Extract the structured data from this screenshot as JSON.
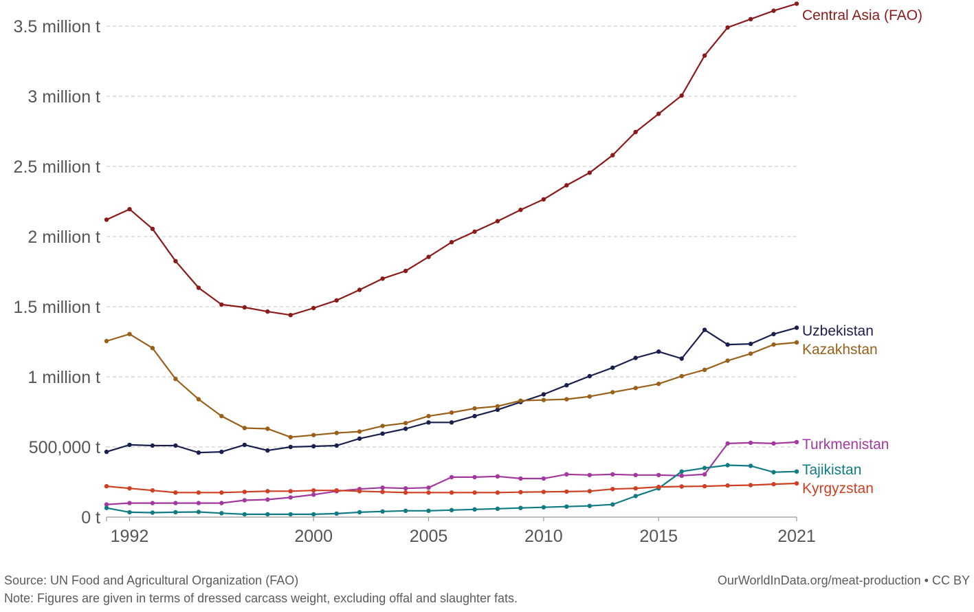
{
  "chart_data": {
    "type": "line",
    "title": "",
    "xlabel": "",
    "ylabel": "",
    "x": [
      1991,
      1992,
      1993,
      1994,
      1995,
      1996,
      1997,
      1998,
      1999,
      2000,
      2001,
      2002,
      2003,
      2004,
      2005,
      2006,
      2007,
      2008,
      2009,
      2010,
      2011,
      2012,
      2013,
      2014,
      2015,
      2016,
      2017,
      2018,
      2019,
      2020,
      2021
    ],
    "xlim": [
      1991,
      2021
    ],
    "ylim": [
      0,
      3600000
    ],
    "y_ticks": [
      {
        "value": 0,
        "label": "0 t"
      },
      {
        "value": 500000,
        "label": "500,000 t"
      },
      {
        "value": 1000000,
        "label": "1 million t"
      },
      {
        "value": 1500000,
        "label": "1.5 million t"
      },
      {
        "value": 2000000,
        "label": "2 million t"
      },
      {
        "value": 2500000,
        "label": "2.5 million t"
      },
      {
        "value": 3000000,
        "label": "3 million t"
      },
      {
        "value": 3500000,
        "label": "3.5 million t"
      }
    ],
    "x_ticks": [
      {
        "value": 1992,
        "label": "1992"
      },
      {
        "value": 2000,
        "label": "2000"
      },
      {
        "value": 2005,
        "label": "2005"
      },
      {
        "value": 2010,
        "label": "2010"
      },
      {
        "value": 2015,
        "label": "2015"
      },
      {
        "value": 2021,
        "label": "2021"
      }
    ],
    "grid": true,
    "series": [
      {
        "name": "Central Asia (FAO)",
        "color": "#8b1a1a",
        "values": [
          2120000,
          2195000,
          2055000,
          1825000,
          1635000,
          1515000,
          1495000,
          1465000,
          1440000,
          1490000,
          1545000,
          1620000,
          1700000,
          1755000,
          1855000,
          1960000,
          2035000,
          2110000,
          2190000,
          2265000,
          2365000,
          2455000,
          2580000,
          2745000,
          2875000,
          3005000,
          3290000,
          3490000,
          3550000,
          3610000,
          3660000
        ]
      },
      {
        "name": "Uzbekistan",
        "color": "#1a1f4d",
        "values": [
          465000,
          515000,
          510000,
          510000,
          460000,
          465000,
          515000,
          475000,
          500000,
          505000,
          510000,
          560000,
          595000,
          630000,
          675000,
          675000,
          720000,
          765000,
          820000,
          875000,
          940000,
          1005000,
          1065000,
          1135000,
          1180000,
          1130000,
          1335000,
          1230000,
          1235000,
          1305000,
          1350000
        ]
      },
      {
        "name": "Kazakhstan",
        "color": "#98601a",
        "values": [
          1255000,
          1305000,
          1205000,
          985000,
          840000,
          720000,
          635000,
          630000,
          570000,
          585000,
          600000,
          610000,
          650000,
          670000,
          720000,
          745000,
          775000,
          790000,
          830000,
          835000,
          840000,
          860000,
          890000,
          920000,
          950000,
          1005000,
          1050000,
          1115000,
          1165000,
          1230000,
          1245000
        ]
      },
      {
        "name": "Turkmenistan",
        "color": "#a2399e",
        "values": [
          90000,
          100000,
          100000,
          100000,
          100000,
          100000,
          120000,
          125000,
          140000,
          160000,
          185000,
          200000,
          210000,
          205000,
          210000,
          285000,
          285000,
          290000,
          275000,
          275000,
          305000,
          300000,
          305000,
          300000,
          300000,
          295000,
          305000,
          525000,
          530000,
          525000,
          535000
        ]
      },
      {
        "name": "Tajikistan",
        "color": "#117b84",
        "values": [
          65000,
          35000,
          32000,
          35000,
          37000,
          28000,
          20000,
          20000,
          20000,
          20000,
          25000,
          35000,
          40000,
          45000,
          45000,
          50000,
          55000,
          60000,
          65000,
          70000,
          75000,
          80000,
          90000,
          150000,
          205000,
          325000,
          350000,
          370000,
          365000,
          320000,
          325000
        ]
      },
      {
        "name": "Kyrgyzstan",
        "color": "#cf3f23",
        "values": [
          220000,
          205000,
          190000,
          175000,
          175000,
          175000,
          180000,
          185000,
          185000,
          190000,
          190000,
          185000,
          180000,
          175000,
          175000,
          175000,
          175000,
          175000,
          178000,
          180000,
          182000,
          185000,
          200000,
          205000,
          215000,
          218000,
          220000,
          225000,
          228000,
          235000,
          240000
        ]
      }
    ]
  },
  "footer": {
    "source": "Source: UN Food and Agricultural Organization (FAO)",
    "note": "Note: Figures are given in terms of dressed carcass weight, excluding offal and slaughter fats.",
    "credit": "OurWorldInData.org/meat-production • CC BY"
  }
}
